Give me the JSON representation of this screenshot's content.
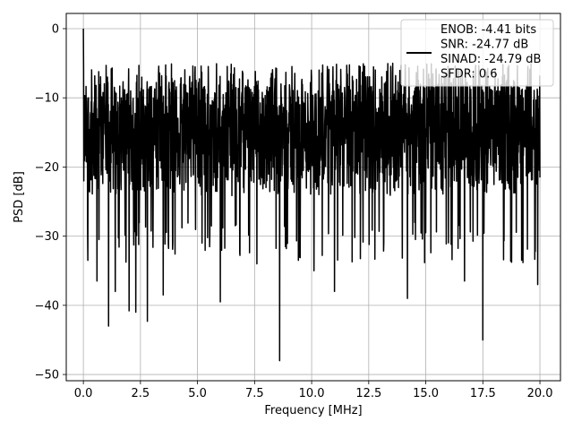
{
  "chart_data": {
    "type": "line",
    "xlabel": "Frequency [MHz]",
    "ylabel": "PSD [dB]",
    "xlim": [
      -0.75,
      20.9
    ],
    "ylim": [
      -50.9,
      2.2
    ],
    "xticks": [
      0.0,
      2.5,
      5.0,
      7.5,
      10.0,
      12.5,
      15.0,
      17.5,
      20.0
    ],
    "xtick_labels": [
      "0.0",
      "2.5",
      "5.0",
      "7.5",
      "10.0",
      "12.5",
      "15.0",
      "17.5",
      "20.0"
    ],
    "yticks": [
      0,
      -10,
      -20,
      -30,
      -40,
      -50
    ],
    "ytick_labels": [
      "0",
      "−10",
      "−20",
      "−30",
      "−40",
      "−50"
    ],
    "grid": true,
    "legend_position": "top-right",
    "series": [
      {
        "name": "ENOB: -4.41 bits\nSNR: -24.77 dB\nSINAD: -24.79 dB\nSFDR: 0.6",
        "color": "#000000",
        "legend_lines": [
          "ENOB: -4.41 bits",
          "SNR: -24.77 dB",
          "SINAD: -24.79 dB",
          "SFDR: 0.6"
        ],
        "x_range": [
          0.0,
          20.0
        ],
        "points": 2048,
        "typical_range": [
          -27,
          -8
        ],
        "peak": {
          "x": 0.0,
          "y": 0.0
        },
        "notable_dips": [
          {
            "x": 0.2,
            "y": -33.5
          },
          {
            "x": 0.6,
            "y": -36.5
          },
          {
            "x": 1.1,
            "y": -43.0
          },
          {
            "x": 1.4,
            "y": -38.0
          },
          {
            "x": 2.0,
            "y": -40.8
          },
          {
            "x": 2.3,
            "y": -41.0
          },
          {
            "x": 2.8,
            "y": -42.3
          },
          {
            "x": 3.5,
            "y": -38.5
          },
          {
            "x": 6.0,
            "y": -39.5
          },
          {
            "x": 7.6,
            "y": -34.0
          },
          {
            "x": 8.6,
            "y": -48.0
          },
          {
            "x": 10.1,
            "y": -35.0
          },
          {
            "x": 11.0,
            "y": -38.0
          },
          {
            "x": 14.2,
            "y": -39.0
          },
          {
            "x": 16.7,
            "y": -36.5
          },
          {
            "x": 17.5,
            "y": -45.0
          },
          {
            "x": 19.9,
            "y": -37.0
          }
        ]
      }
    ]
  }
}
